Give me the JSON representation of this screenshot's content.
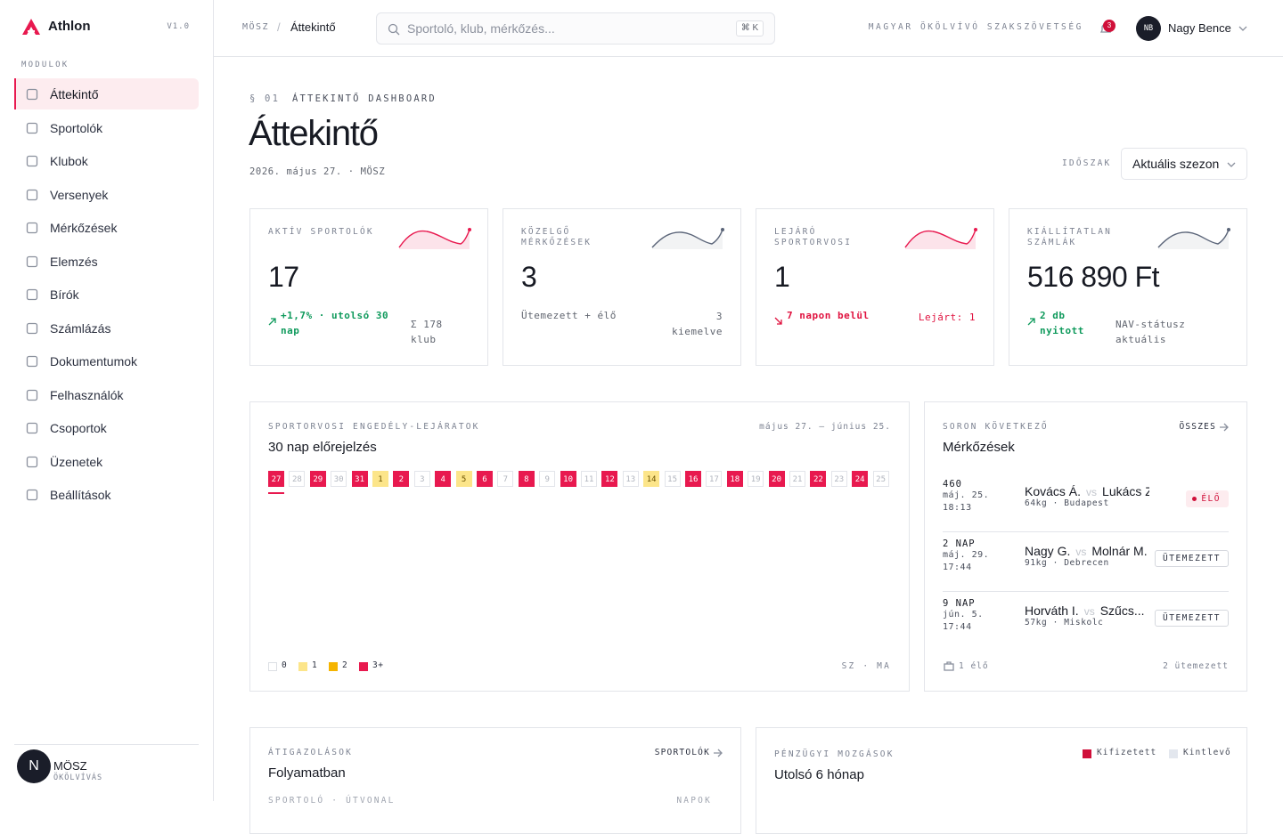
{
  "sidebar": {
    "brand": "Athlon",
    "version": "V1.0",
    "section": "MODULOK",
    "nav": [
      "Áttekintő",
      "Sportolók",
      "Klubok",
      "Versenyek",
      "Mérkőzések",
      "Elemzés",
      "Bírók",
      "Számlázás",
      "Dokumentumok",
      "Felhasználók",
      "Csoportok",
      "Üzenetek",
      "Beállítások"
    ],
    "active": 0,
    "footer": {
      "avatar": "N",
      "name": "MÖSZ",
      "sub": "ÖKÖLVÍVÁS"
    }
  },
  "topbar": {
    "breadcrumb": [
      "MÖSZ",
      "Áttekintő"
    ],
    "separator": "/",
    "search": "Sportoló, klub, mérkőzés...",
    "shortcut": [
      "⌘",
      "K"
    ],
    "org": "MAGYAR ÖKÖLVÍVÓ SZAKSZÖVETSÉG",
    "notifications": "3",
    "user": {
      "initials": "NB",
      "name": "Nagy Bence"
    }
  },
  "header": {
    "section": "§ 01",
    "eyebrow": "ÁTTEKINTŐ DASHBOARD",
    "title": "Áttekintő",
    "date": "2026. május 27. · MÖSZ",
    "period_label": "IDŐSZAK",
    "period": "Aktuális szezon"
  },
  "kpis": [
    {
      "label": "AKTÍV SPORTOLÓK",
      "value": "17",
      "note": "+1,7% · utolsó 30 nap",
      "trend": "up",
      "side": "Σ 178 klub",
      "color": "#e8194f"
    },
    {
      "label": "KÖZELGŐ MÉRKŐZÉSEK",
      "value": "3",
      "note": "Ütemezett + élő",
      "trend": "none",
      "side": "3 kiemelve",
      "color": "#5a6478"
    },
    {
      "label": "LEJÁRÓ SPORTORVOSI",
      "value": "1",
      "note": "7 napon belül",
      "trend": "down",
      "side": "Lejárt: 1",
      "color": "#e8194f"
    },
    {
      "label": "KIÁLLÍTATLAN SZÁMLÁK",
      "value": "516 890 Ft",
      "note": "2 db nyitott",
      "trend": "up",
      "side": "NAV-státusz aktuális",
      "color": "#5a6478"
    }
  ],
  "forecast": {
    "eyebrow": "SPORTORVOSI ENGEDÉLY-LEJÁRATOK",
    "title": "30 nap előrejelzés",
    "range": "május 27. – június 25.",
    "days": [
      {
        "label": "27",
        "level": 3
      },
      {
        "label": "28",
        "level": 0
      },
      {
        "label": "29",
        "level": 3
      },
      {
        "label": "30",
        "level": 0
      },
      {
        "label": "31",
        "level": 3
      },
      {
        "label": "1",
        "level": 1
      },
      {
        "label": "2",
        "level": 3
      },
      {
        "label": "3",
        "level": 0
      },
      {
        "label": "4",
        "level": 3
      },
      {
        "label": "5",
        "level": 1
      },
      {
        "label": "6",
        "level": 3
      },
      {
        "label": "7",
        "level": 0
      },
      {
        "label": "8",
        "level": 3
      },
      {
        "label": "9",
        "level": 0
      },
      {
        "label": "10",
        "level": 3
      },
      {
        "label": "11",
        "level": 0
      },
      {
        "label": "12",
        "level": 3
      },
      {
        "label": "13",
        "level": 0
      },
      {
        "label": "14",
        "level": 1
      },
      {
        "label": "15",
        "level": 0
      },
      {
        "label": "16",
        "level": 3
      },
      {
        "label": "17",
        "level": 0
      },
      {
        "label": "18",
        "level": 3
      },
      {
        "label": "19",
        "level": 0
      },
      {
        "label": "20",
        "level": 3
      },
      {
        "label": "21",
        "level": 0
      },
      {
        "label": "22",
        "level": 3
      },
      {
        "label": "23",
        "level": 0
      },
      {
        "label": "24",
        "level": 3
      },
      {
        "label": "25",
        "level": 0
      }
    ],
    "legend": [
      "0",
      "1",
      "2",
      "3+"
    ],
    "legend_colors": [
      "#ffffff",
      "#fce58a",
      "#f5b400",
      "#e8194f"
    ],
    "footer": "SZ · MA"
  },
  "matches": {
    "eyebrow": "SORON KÖVETKEZŐ",
    "title": "Mérkőzések",
    "link": "ÖSSZES",
    "vs": "vs",
    "rows": [
      {
        "when": "460",
        "date": "máj. 25.",
        "time": "18:13",
        "home": "Kovács Á.",
        "away": "Lukács Z.",
        "meta": "64kg · Budapest",
        "status": "ÉLŐ",
        "live": true
      },
      {
        "when": "2 NAP",
        "date": "máj. 29.",
        "time": "17:44",
        "home": "Nagy G.",
        "away": "Molnár M.",
        "meta": "91kg · Debrecen",
        "status": "ÜTEMEZETT",
        "live": false
      },
      {
        "when": "9 NAP",
        "date": "jún. 5.",
        "time": "17:44",
        "home": "Horváth I.",
        "away": "Szűcs...",
        "meta": "57kg · Miskolc",
        "status": "ÜTEMEZETT",
        "live": false
      }
    ],
    "footer": [
      "1 élő",
      "2 ütemezett"
    ]
  },
  "transfers": {
    "eyebrow": "ÁTIGAZOLÁSOK",
    "title": "Folyamatban",
    "link": "SPORTOLÓK",
    "columns": [
      "SPORTOLÓ · ÚTVONAL",
      "NAPOK"
    ]
  },
  "finance": {
    "eyebrow": "PÉNZÜGYI MOZGÁSOK",
    "title": "Utolsó 6 hónap",
    "legend": [
      {
        "name": "Kifizetett",
        "color": "#d0103a"
      },
      {
        "name": "Kintlevő",
        "color": "#e3e7ee"
      }
    ]
  }
}
